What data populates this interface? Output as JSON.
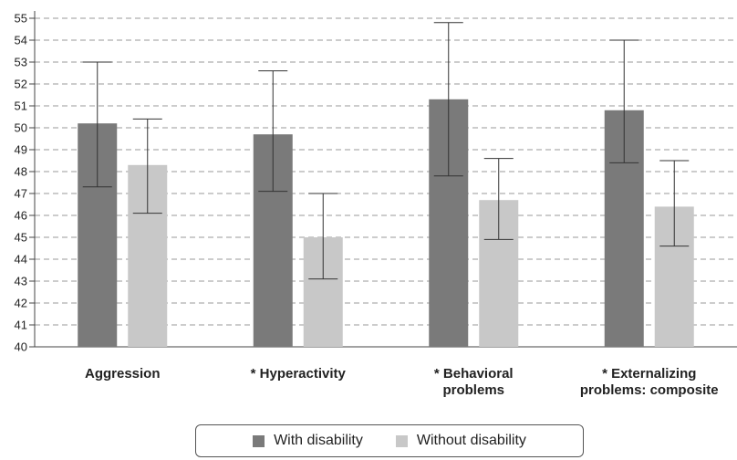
{
  "chart_data": {
    "type": "bar",
    "categories": [
      "Aggression",
      "* Hyperactivity",
      "* Behavioral problems",
      "* Externalizing problems: composite"
    ],
    "category_lines": [
      [
        "Aggression"
      ],
      [
        "* Hyperactivity"
      ],
      [
        "* Behavioral",
        "problems"
      ],
      [
        "* Externalizing",
        "problems: composite"
      ]
    ],
    "series": [
      {
        "name": "With disability",
        "color": "#7a7a7a",
        "values": [
          50.2,
          49.7,
          51.3,
          50.8
        ],
        "err_low": [
          47.3,
          47.1,
          47.8,
          48.4
        ],
        "err_high": [
          53.0,
          52.6,
          54.8,
          54.0
        ]
      },
      {
        "name": "Without disability",
        "color": "#c8c8c8",
        "values": [
          48.3,
          45.0,
          46.7,
          46.4
        ],
        "err_low": [
          46.1,
          43.1,
          44.9,
          44.6
        ],
        "err_high": [
          50.4,
          47.0,
          48.6,
          48.5
        ]
      }
    ],
    "ylim": [
      40,
      55
    ],
    "yticks": [
      40,
      41,
      42,
      43,
      44,
      45,
      46,
      47,
      48,
      49,
      50,
      51,
      52,
      53,
      54,
      55
    ],
    "grid": true,
    "legend_position": "bottom"
  }
}
